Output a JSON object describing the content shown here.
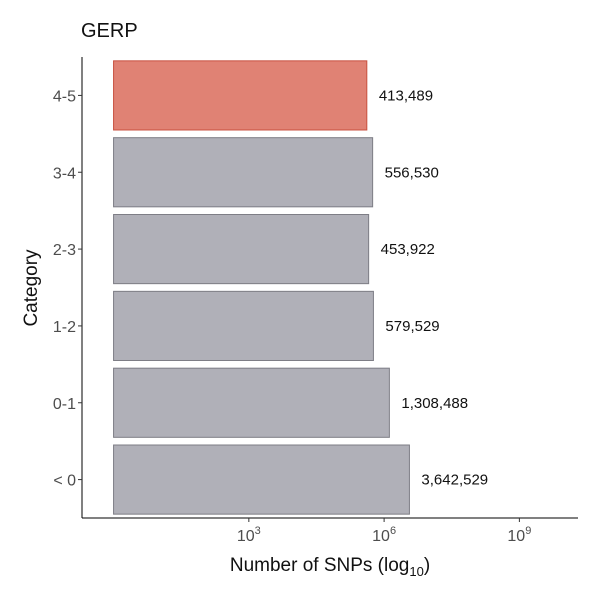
{
  "chart_data": {
    "type": "bar",
    "orientation": "horizontal",
    "title": "GERP",
    "xlabel": {
      "main": "Number of SNPs (log",
      "sub": "10",
      "close": ")"
    },
    "ylabel": "Category",
    "x_scale": "log10",
    "xlim_log10": [
      -0.7,
      10.3
    ],
    "xticks": [
      {
        "base": "10",
        "exp": "3",
        "value": 1000
      },
      {
        "base": "10",
        "exp": "6",
        "value": 1000000
      },
      {
        "base": "10",
        "exp": "9",
        "value": 1000000000
      }
    ],
    "categories": [
      "< 0",
      "0-1",
      "1-2",
      "2-3",
      "3-4",
      "4-5"
    ],
    "values": [
      3642529,
      1308488,
      579529,
      453922,
      556530,
      413489
    ],
    "labels": [
      "3,642,529",
      "1,308,488",
      "579,529",
      "453,922",
      "556,530",
      "413,489"
    ],
    "colors": [
      "#b0b0b8",
      "#b0b0b8",
      "#b0b0b8",
      "#b0b0b8",
      "#b0b0b8",
      "#e08274"
    ],
    "highlight_category": "4-5",
    "grid": false
  }
}
